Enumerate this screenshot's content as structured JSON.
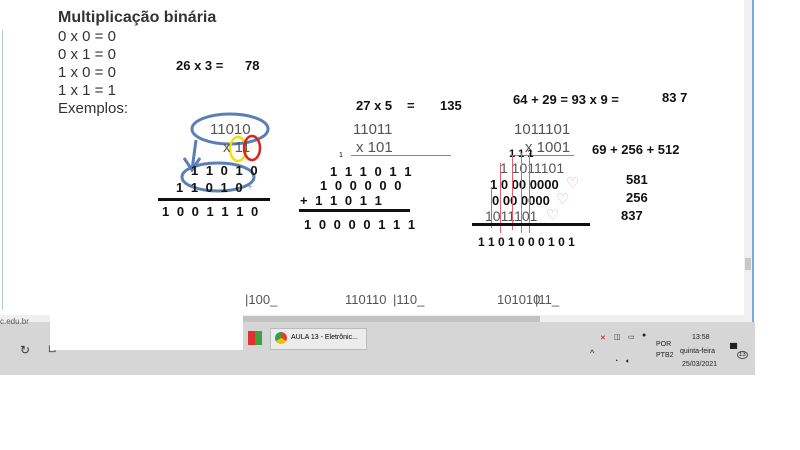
{
  "document": {
    "title": "Multiplicação binária",
    "rules": [
      "0 x 0 = 0",
      "0 x 1 = 0",
      "1 x 0 = 0",
      "1 x 1 = 1"
    ],
    "examples_label": "Exemplos:",
    "ex1": {
      "equation": "26 x 3 =",
      "result": "78",
      "multiplicand": "11010",
      "multiplier": "x 11",
      "row1": "1 1 0 1 0",
      "row2": "1 1 0 1 0",
      "plus": "+",
      "sum": "1 0 0 1 1 1 0"
    },
    "ex2": {
      "equation": "27 x 5",
      "eq": "=",
      "result": "135",
      "multiplicand": "11011",
      "multiplier": "x 101",
      "carry": "1",
      "row1": "1 1 1 0 1 1",
      "row2": "1 0 0 0 0 0",
      "row3": "+ 1 1 0 1 1",
      "sum": "1 0 0 0 0 1 1 1"
    },
    "ex3": {
      "equation": "64 + 29 = 93 x 9 =",
      "result": "83 7",
      "multiplicand": "1011101",
      "multiplier": "x 1001",
      "carry": "1 1 1",
      "row1": "1 1011101",
      "row2": "1 0 00 0000",
      "row3": "0 00 0000",
      "row4": "1011101",
      "sum": "1 1 0 1 0 0 0 1 0 1",
      "side_sum": "69 + 256 + 512",
      "n1": "581",
      "n2": "256",
      "n3": "837"
    },
    "divisions": [
      "|100_",
      "110110",
      "|110_",
      "101010",
      "|11_"
    ]
  },
  "status_url": "c.edu.br",
  "taskbar": {
    "app_label": "AULA 13 - Eletrônic...",
    "lang1": "POR",
    "lang2": "PTB2",
    "time": "13:58",
    "day": "quinta-feira",
    "date": "25/03/2021",
    "notifications": "13"
  },
  "colors": {
    "circle_blue": "#5b7fb5",
    "circle_yellow": "#f2e200",
    "circle_red": "#e02020",
    "heart_pink": "#f4a0c0",
    "taskbar": "#d6d6d6"
  }
}
